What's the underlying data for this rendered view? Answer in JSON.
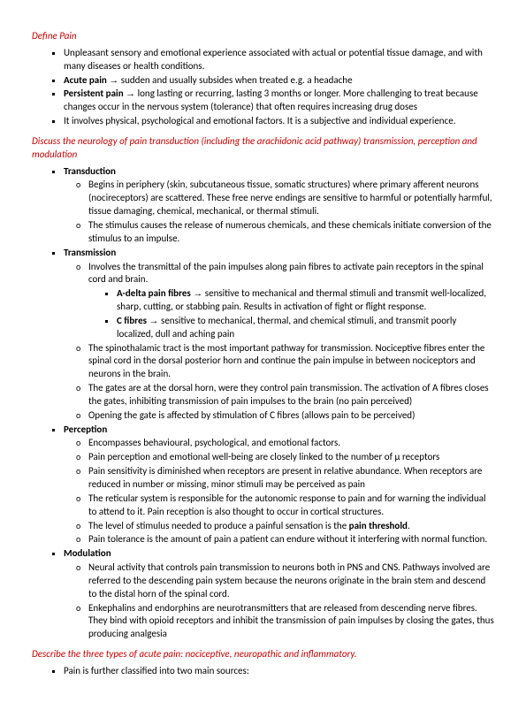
{
  "s1": {
    "heading": "Define Pain",
    "b1": "Unpleasant sensory and emotional experience associated with actual or potential tissue damage, and with many diseases or health conditions.",
    "b2a": "Acute pain",
    "b2b": " sudden and usually subsides when treated e.g. a headache",
    "b3a": "Persistent pain",
    "b3b": " long lasting or recurring, lasting 3 months or longer. More challenging to treat because changes occur in the nervous system (tolerance) that often requires increasing drug doses",
    "b4": "It involves physical, psychological and emotional factors. It is a subjective and individual experience."
  },
  "s2": {
    "heading": "Discuss the neurology of pain transduction (including the arachidonic acid pathway) transmission, perception and modulation",
    "transduction": {
      "title": "Transduction",
      "o1": "Begins in periphery (skin, subcutaneous tissue, somatic structures) where primary afferent neurons (nocireceptors) are scattered. These free nerve endings are sensitive to harmful or potentially harmful, tissue damaging, chemical, mechanical, or thermal stimuli.",
      "o2": "The stimulus causes the release of numerous chemicals, and these chemicals initiate conversion of the stimulus to an impulse."
    },
    "transmission": {
      "title": "Transmission",
      "o1": "Involves the transmittal of the pain impulses along pain fibres to activate pain receptors in the spinal cord and brain.",
      "s1a": "A-delta pain fibres",
      "s1b": " sensitive to mechanical and thermal stimuli and transmit well-localized, sharp, cutting, or stabbing pain. Results in activation of fight or flight response.",
      "s2a": "C fibres",
      "s2b": " sensitive to mechanical, thermal, and chemical stimuli, and transmit poorly localized, dull and aching pain",
      "o2": "The spinothalamic tract is the most important pathway for transmission. Nociceptive fibres enter the spinal cord in the dorsal posterior horn and continue the pain impulse in between nociceptors and neurons in the brain.",
      "o3": "The gates are at the dorsal horn, were they control pain transmission. The activation of A fibres closes the gates, inhibiting transmission of pain impulses to the brain (no pain perceived)",
      "o4": "Opening the gate is affected by stimulation of C fibres (allows pain to be perceived)"
    },
    "perception": {
      "title": "Perception",
      "o1": "Encompasses behavioural, psychological, and emotional factors.",
      "o2": "Pain perception and emotional well-being are closely linked to the number of µ receptors",
      "o3": "Pain sensitivity is diminished when receptors are present in relative abundance. When receptors are reduced in number or missing, minor stimuli may be perceived as pain",
      "o4": "The reticular system is responsible for the autonomic response to pain and for warning the individual to attend to it. Pain reception is also thought to occur in cortical structures.",
      "o5a": "The level of stimulus needed to produce a painful sensation is the ",
      "o5b": "pain threshold",
      "o5c": ".",
      "o6": "Pain tolerance is the amount of pain a patient can endure without it interfering with normal function."
    },
    "modulation": {
      "title": "Modulation",
      "o1": "Neural activity that controls pain transmission to neurons both in PNS and CNS. Pathways involved are referred to the descending pain system because the neurons originate in the brain stem and descend to the distal horn of the spinal cord.",
      "o2": "Enkephalins and endorphins are neurotransmitters that are released from descending nerve fibres. They bind with opioid receptors and inhibit the transmission of pain impulses by closing the gates, thus producing analgesia"
    }
  },
  "s3": {
    "heading": "Describe the three types of acute pain: nociceptive, neuropathic and inflammatory.",
    "b1": "Pain is further classified into two main sources:"
  },
  "arrow": "→"
}
